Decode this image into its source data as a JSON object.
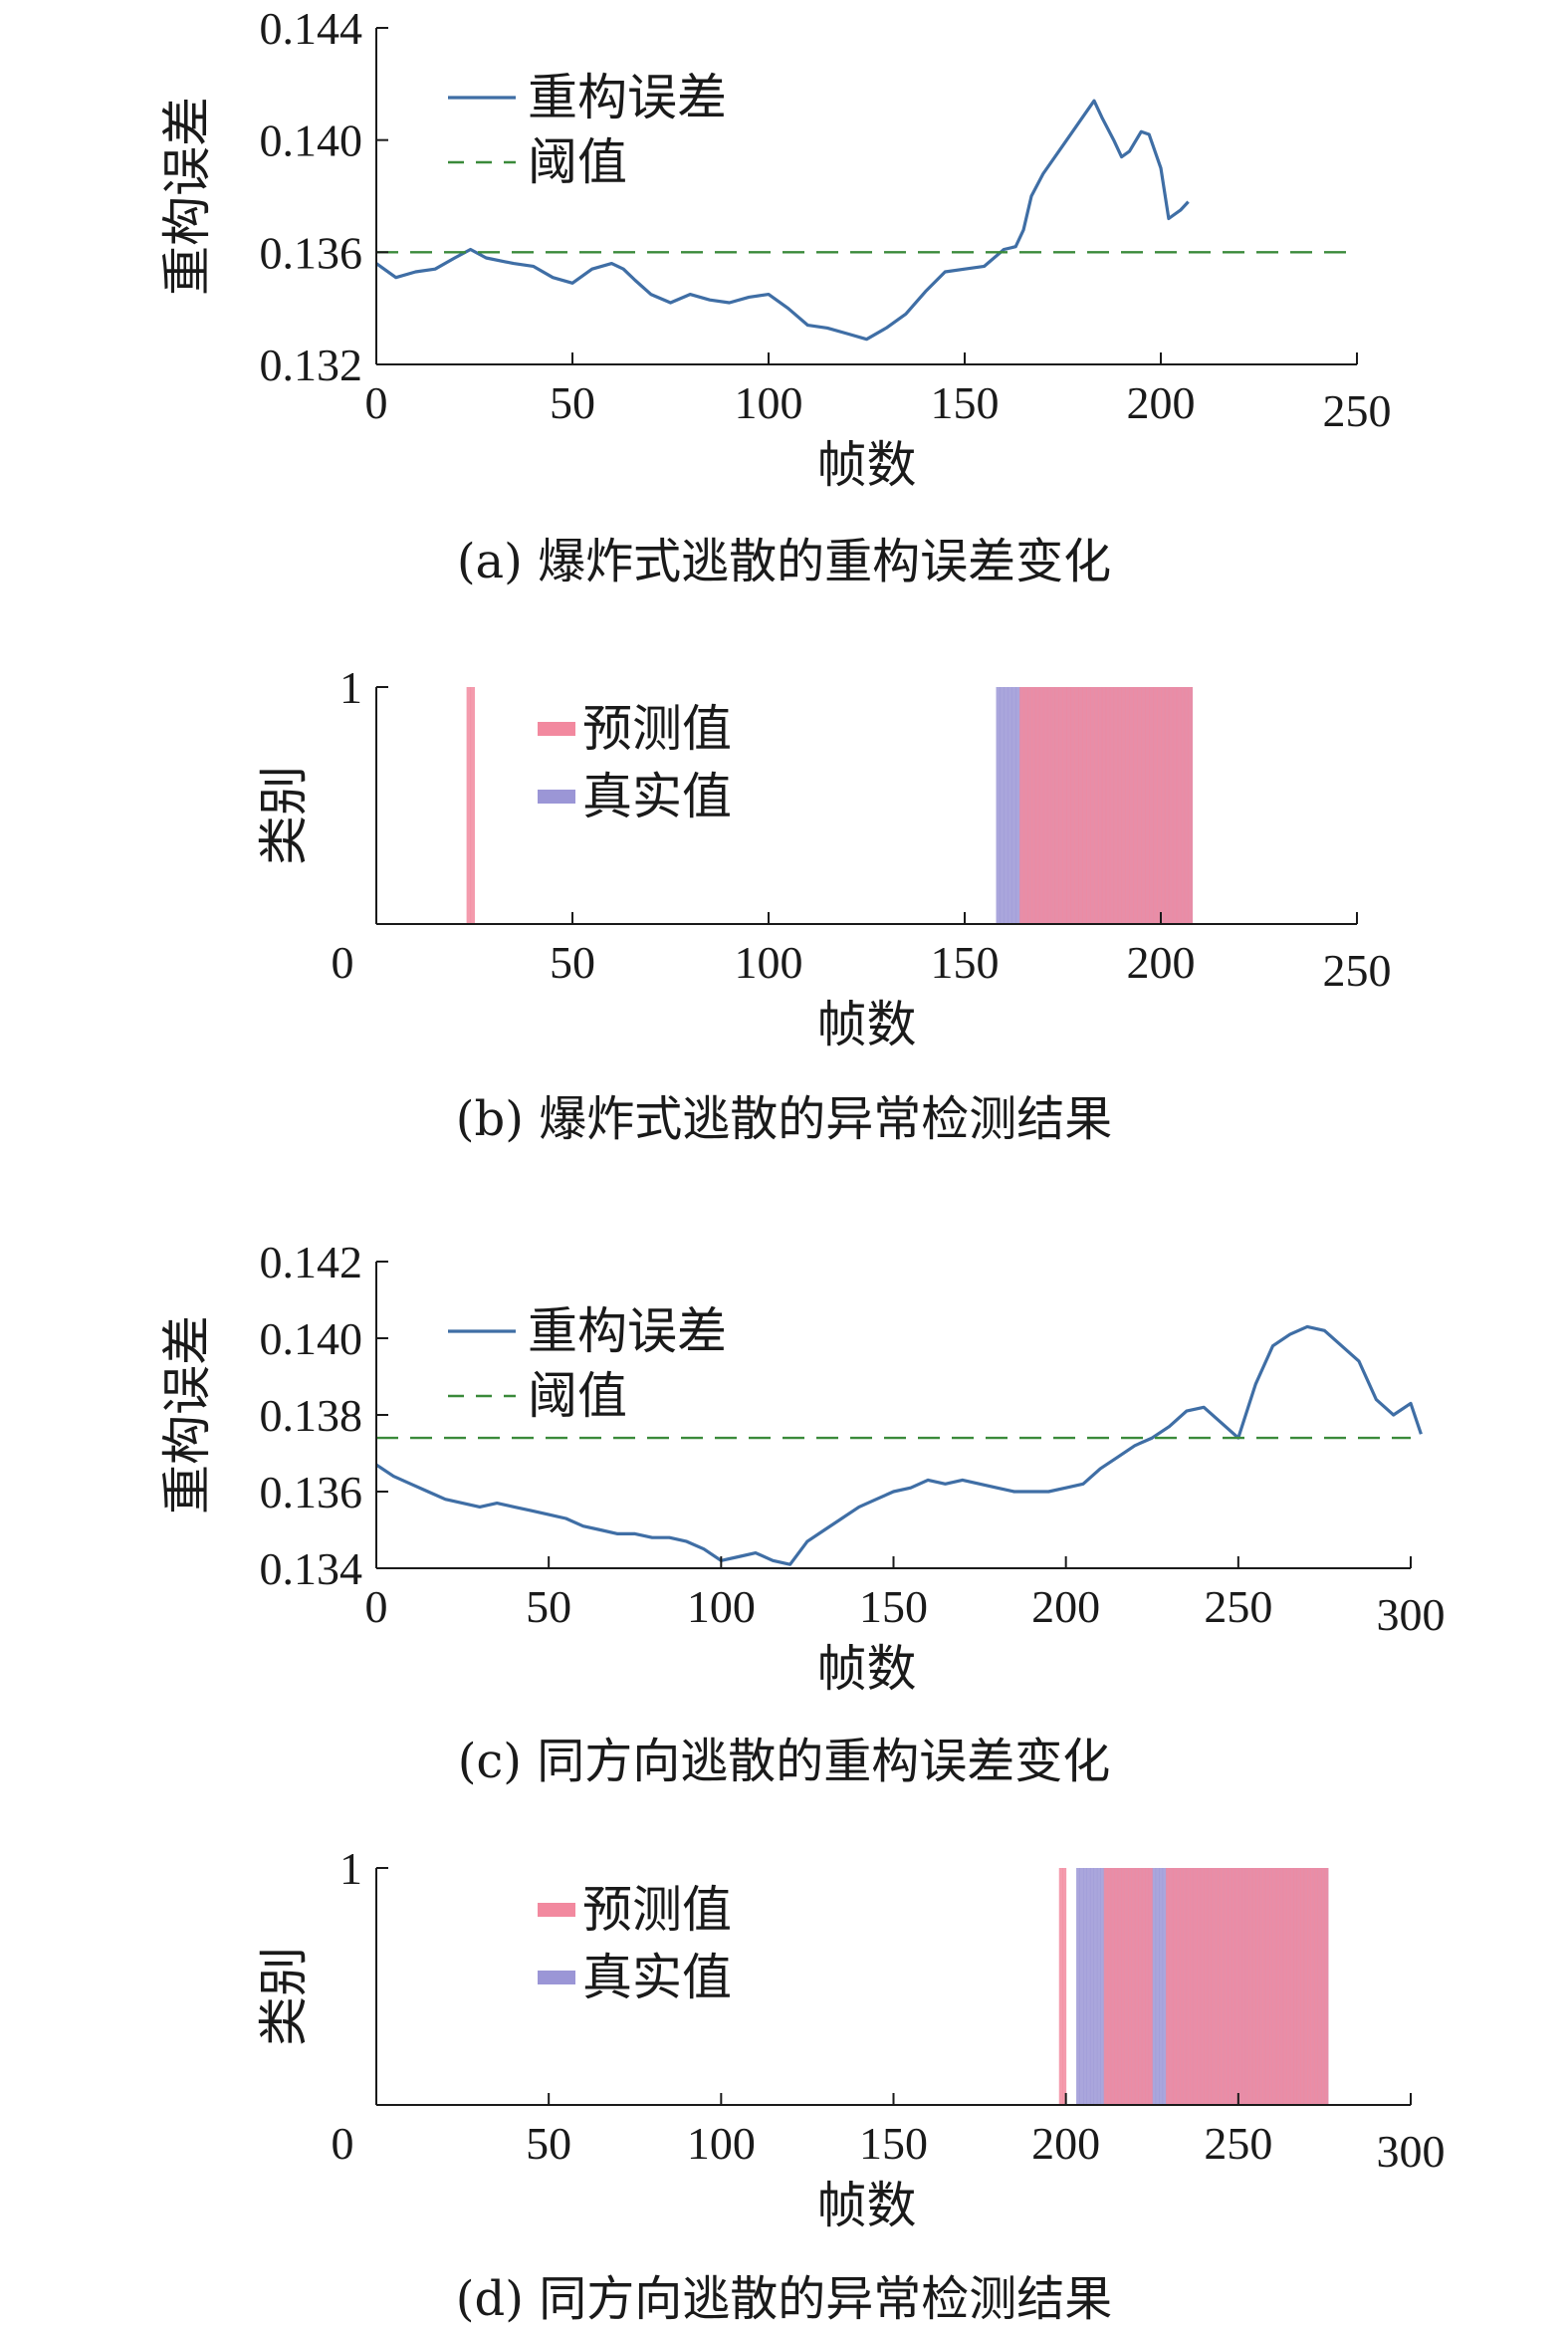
{
  "figure": {
    "panels": [
      {
        "id": "a",
        "caption": "(a) 爆炸式逃散的重构误差变化",
        "chart_data": {
          "type": "line",
          "xlabel": "帧数",
          "ylabel": "重构误差",
          "xlim": [
            0,
            250
          ],
          "ylim": [
            0.132,
            0.144
          ],
          "xticks": [
            0,
            50,
            100,
            150,
            200,
            250
          ],
          "yticks": [
            0.132,
            0.136,
            0.14,
            0.144
          ],
          "ytick_labels": [
            "0.132",
            "0.136",
            "0.140",
            "0.144"
          ],
          "legend_position": "top-left",
          "grid": false,
          "series": [
            {
              "name": "重构误差",
              "color": "#3f6ea5",
              "style": "solid",
              "x": [
                0,
                5,
                10,
                15,
                20,
                24,
                28,
                35,
                40,
                45,
                50,
                55,
                60,
                63,
                66,
                70,
                75,
                80,
                85,
                90,
                95,
                100,
                105,
                110,
                115,
                120,
                125,
                130,
                135,
                140,
                145,
                150,
                155,
                160,
                163,
                165,
                167,
                170,
                175,
                180,
                183,
                185,
                188,
                190,
                192,
                195,
                197,
                200,
                202,
                205,
                207
              ],
              "y": [
                0.1356,
                0.1351,
                0.1353,
                0.1354,
                0.1358,
                0.1361,
                0.1358,
                0.1356,
                0.1355,
                0.1351,
                0.1349,
                0.1354,
                0.1356,
                0.1354,
                0.135,
                0.1345,
                0.1342,
                0.1345,
                0.1343,
                0.1342,
                0.1344,
                0.1345,
                0.134,
                0.1334,
                0.1333,
                0.1331,
                0.1329,
                0.1333,
                0.1338,
                0.1346,
                0.1353,
                0.1354,
                0.1355,
                0.1361,
                0.1362,
                0.1368,
                0.138,
                0.1388,
                0.1398,
                0.1408,
                0.1414,
                0.1408,
                0.14,
                0.1394,
                0.1396,
                0.1403,
                0.1402,
                0.139,
                0.1372,
                0.1375,
                0.1378
              ]
            },
            {
              "name": "阈值",
              "color": "#3a8a3a",
              "style": "dashed",
              "value": 0.136
            }
          ]
        }
      },
      {
        "id": "b",
        "caption": "(b) 爆炸式逃散的异常检测结果",
        "chart_data": {
          "type": "bar",
          "xlabel": "帧数",
          "ylabel": "类别",
          "xlim": [
            0,
            250
          ],
          "ylim": [
            0,
            1
          ],
          "xticks": [
            0,
            50,
            100,
            150,
            200,
            250
          ],
          "yticks": [
            1
          ],
          "ytick_labels": [
            "1"
          ],
          "legend_position": "top-left",
          "grid": false,
          "series": [
            {
              "name": "预测值",
              "color": "#f2899f",
              "opacity": 0.85,
              "frames": [
                23,
                24,
                164,
                165,
                166,
                167,
                168,
                169,
                170,
                171,
                172,
                173,
                174,
                175,
                176,
                177,
                178,
                179,
                180,
                181,
                182,
                183,
                184,
                185,
                186,
                187,
                188,
                189,
                190,
                191,
                192,
                193,
                194,
                195,
                196,
                197,
                198,
                199,
                200,
                201,
                202,
                203,
                204,
                205,
                206,
                207
              ]
            },
            {
              "name": "真实值",
              "color": "#9b96d6",
              "opacity": 0.85,
              "frames": [
                158,
                159,
                160,
                161,
                162,
                163,
                164,
                165,
                166,
                167,
                168,
                169,
                170,
                171,
                172,
                173,
                174,
                175,
                176,
                177,
                178,
                179,
                180,
                181,
                182,
                183,
                184,
                185,
                186,
                187,
                188,
                189,
                190,
                191,
                192,
                193,
                194,
                195,
                196,
                197,
                198,
                199,
                200,
                201,
                202,
                203,
                204,
                205,
                206,
                207
              ]
            }
          ]
        }
      },
      {
        "id": "c",
        "caption": "(c) 同方向逃散的重构误差变化",
        "chart_data": {
          "type": "line",
          "xlabel": "帧数",
          "ylabel": "重构误差",
          "xlim": [
            0,
            300
          ],
          "ylim": [
            0.134,
            0.142
          ],
          "xticks": [
            0,
            50,
            100,
            150,
            200,
            250,
            300
          ],
          "yticks": [
            0.134,
            0.136,
            0.138,
            0.14,
            0.142
          ],
          "ytick_labels": [
            "0.134",
            "0.136",
            "0.138",
            "0.140",
            "0.142"
          ],
          "legend_position": "top-left",
          "grid": false,
          "series": [
            {
              "name": "重构误差",
              "color": "#3f6ea5",
              "style": "solid",
              "x": [
                0,
                5,
                10,
                15,
                20,
                25,
                30,
                35,
                40,
                45,
                50,
                55,
                60,
                65,
                70,
                75,
                80,
                85,
                90,
                95,
                100,
                105,
                110,
                115,
                120,
                125,
                130,
                135,
                140,
                145,
                150,
                155,
                160,
                165,
                170,
                175,
                180,
                185,
                190,
                195,
                200,
                205,
                210,
                215,
                220,
                225,
                230,
                235,
                240,
                245,
                250,
                255,
                260,
                265,
                270,
                275,
                280,
                285,
                290,
                295,
                300,
                303
              ],
              "y": [
                0.1367,
                0.1364,
                0.1362,
                0.136,
                0.1358,
                0.1357,
                0.1356,
                0.1357,
                0.1356,
                0.1355,
                0.1354,
                0.1353,
                0.1351,
                0.135,
                0.1349,
                0.1349,
                0.1348,
                0.1348,
                0.1347,
                0.1345,
                0.1342,
                0.1343,
                0.1344,
                0.1342,
                0.1341,
                0.1347,
                0.135,
                0.1353,
                0.1356,
                0.1358,
                0.136,
                0.1361,
                0.1363,
                0.1362,
                0.1363,
                0.1362,
                0.1361,
                0.136,
                0.136,
                0.136,
                0.1361,
                0.1362,
                0.1366,
                0.1369,
                0.1372,
                0.1374,
                0.1377,
                0.1381,
                0.1382,
                0.1378,
                0.1374,
                0.1388,
                0.1398,
                0.1401,
                0.1403,
                0.1402,
                0.1398,
                0.1394,
                0.1384,
                0.138,
                0.1383,
                0.1375
              ]
            },
            {
              "name": "阈值",
              "color": "#3a8a3a",
              "style": "dashed",
              "value": 0.1374
            }
          ]
        }
      },
      {
        "id": "d",
        "caption": "(d) 同方向逃散的异常检测结果",
        "chart_data": {
          "type": "bar",
          "xlabel": "帧数",
          "ylabel": "类别",
          "xlim": [
            0,
            300
          ],
          "ylim": [
            0,
            1
          ],
          "xticks": [
            0,
            50,
            100,
            150,
            200,
            250,
            300
          ],
          "yticks": [
            1
          ],
          "ytick_labels": [
            "1"
          ],
          "legend_position": "top-left",
          "grid": false,
          "series": [
            {
              "name": "预测值",
              "color": "#f2899f",
              "opacity": 0.85,
              "frames": [
                198,
                199,
                211,
                212,
                213,
                214,
                215,
                216,
                217,
                218,
                219,
                220,
                221,
                222,
                223,
                224,
                229,
                230,
                231,
                232,
                233,
                234,
                235,
                236,
                237,
                238,
                239,
                240,
                241,
                242,
                243,
                244,
                245,
                246,
                247,
                248,
                249,
                250,
                251,
                252,
                253,
                254,
                255,
                256,
                257,
                258,
                259,
                260,
                261,
                262,
                263,
                264,
                265,
                266,
                267,
                268,
                269,
                270,
                271,
                272,
                273,
                274,
                275
              ]
            },
            {
              "name": "真实值",
              "color": "#9b96d6",
              "opacity": 0.85,
              "frames": [
                203,
                204,
                205,
                206,
                207,
                208,
                209,
                210,
                211,
                212,
                213,
                214,
                215,
                216,
                217,
                218,
                219,
                220,
                221,
                222,
                223,
                224,
                225,
                226,
                227,
                228,
                229,
                230,
                231,
                232,
                233,
                234,
                235,
                236,
                237,
                238,
                239,
                240,
                241,
                242,
                243,
                244,
                245,
                246,
                247,
                248,
                249,
                250,
                251,
                252,
                253,
                254,
                255,
                256,
                257,
                258,
                259,
                260,
                261,
                262,
                263,
                264,
                265,
                266,
                267,
                268,
                269,
                270,
                271,
                272,
                273,
                274,
                275
              ]
            }
          ]
        }
      }
    ]
  }
}
